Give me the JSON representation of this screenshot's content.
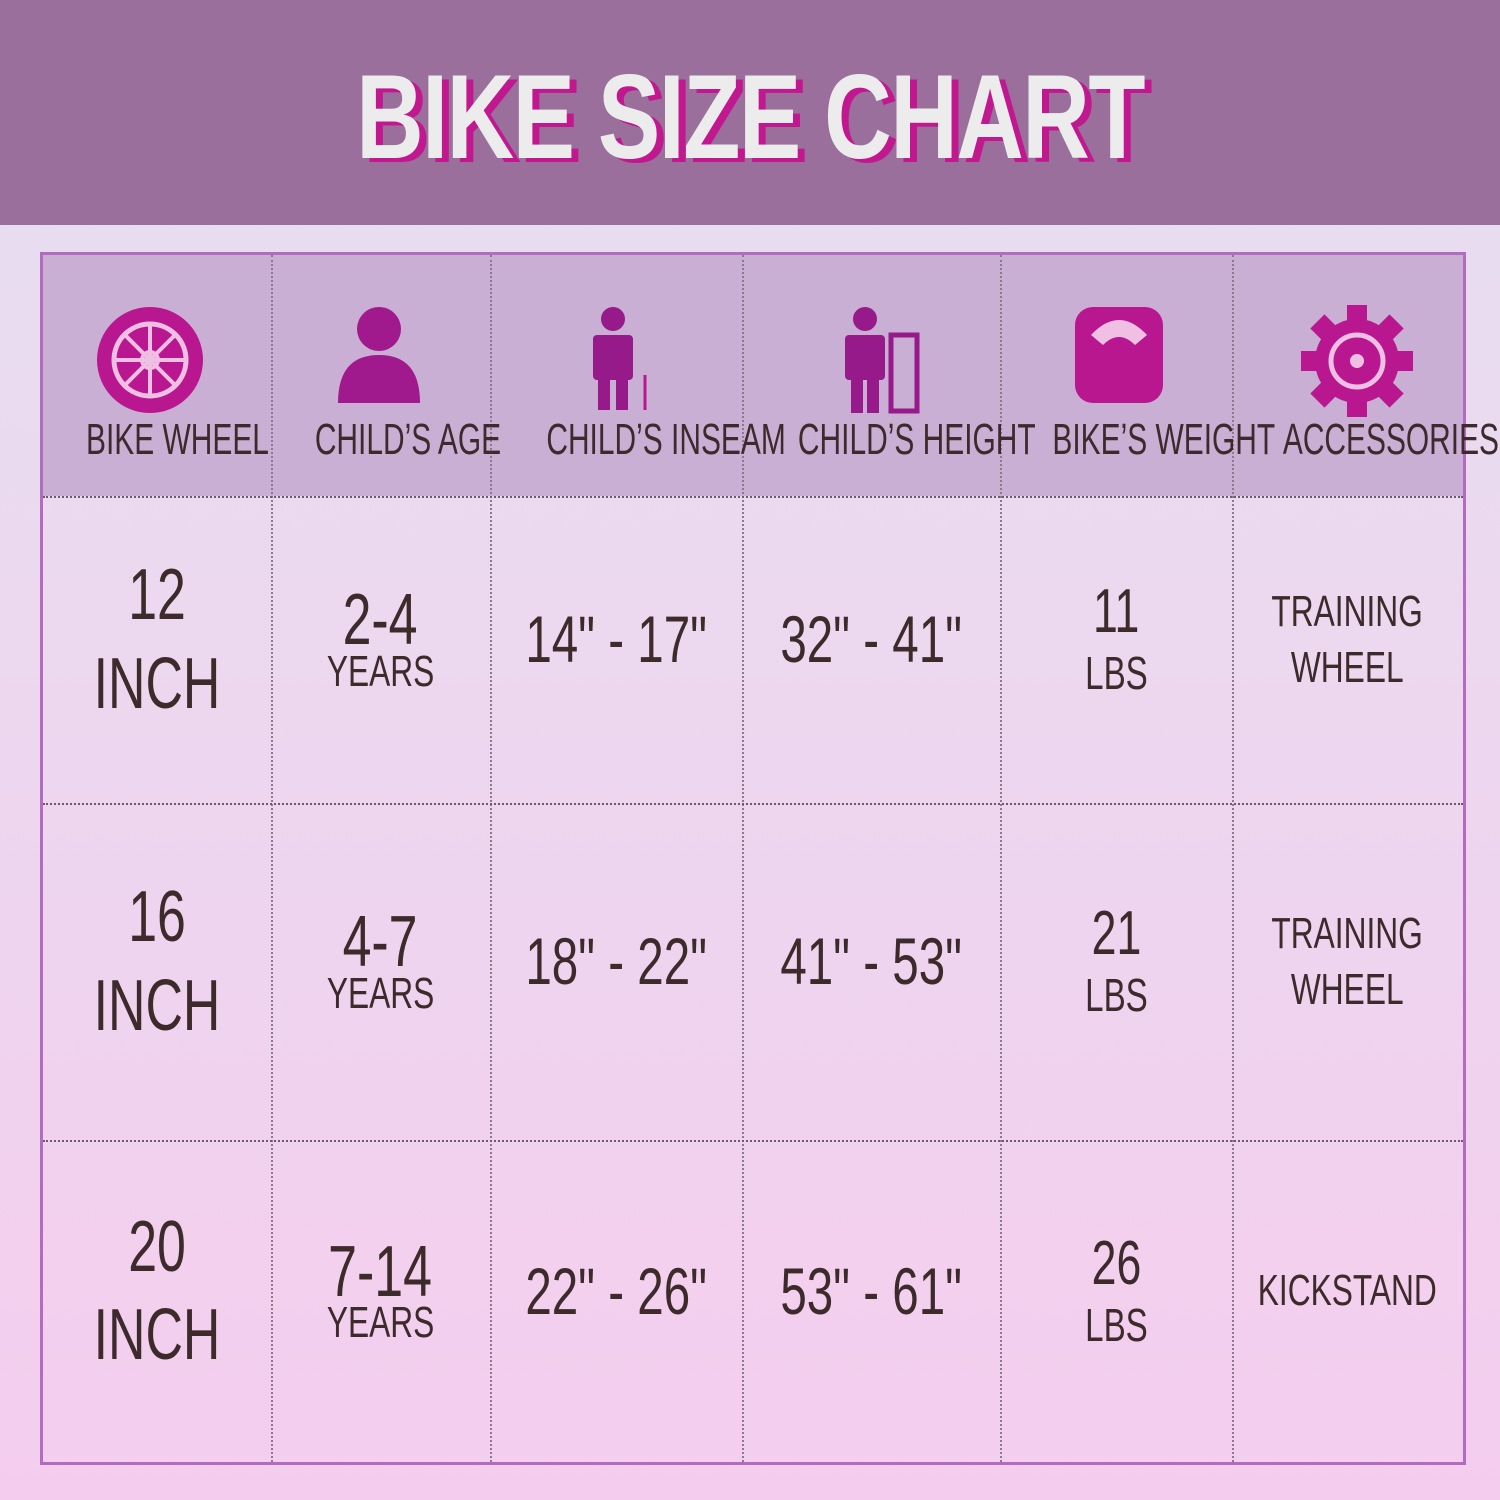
{
  "header": {
    "title": "BIKE SIZE CHART"
  },
  "table": {
    "columns": [
      "BIKE WHEEL",
      "CHILD’S AGE",
      "CHILD’S INSEAM",
      "CHILD’S HEIGHT",
      "BIKE’S WEIGHT",
      "ACCESSORIES"
    ],
    "rows": [
      [
        [
          "12",
          "INCH"
        ],
        [
          "2-4",
          "YEARS"
        ],
        [
          "14\" - 17\""
        ],
        [
          "32\" - 41\""
        ],
        [
          "11",
          "LBS"
        ],
        [
          "TRAINING",
          "WHEEL"
        ]
      ],
      [
        [
          "16",
          "INCH"
        ],
        [
          "4-7",
          "YEARS"
        ],
        [
          "18\" - 22\""
        ],
        [
          "41\" - 53\""
        ],
        [
          "21",
          "LBS"
        ],
        [
          "TRAINING",
          "WHEEL"
        ]
      ],
      [
        [
          "20",
          "INCH"
        ],
        [
          "7-14",
          "YEARS"
        ],
        [
          "22\" - 26\""
        ],
        [
          "53\" - 61\""
        ],
        [
          "26",
          "LBS"
        ],
        [
          "KICKSTAND"
        ]
      ]
    ]
  }
}
